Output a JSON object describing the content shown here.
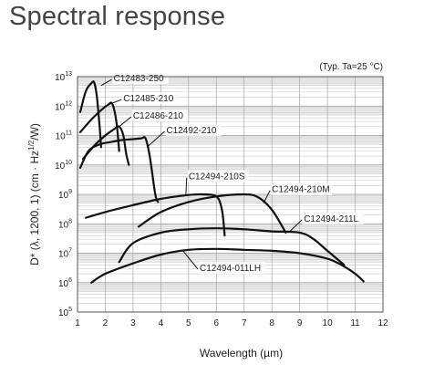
{
  "page": {
    "title": "Spectral response"
  },
  "chart_data": {
    "type": "line",
    "title": "Spectral response",
    "condition_note": "(Typ. Ta=25 °C)",
    "xlabel": "Wavelength (µm)",
    "ylabel": "D* (λ, 1200, 1) (cm · Hz1/2/W)",
    "ylabel_parts": {
      "pre": "D* (",
      "lambda": "λ",
      "post": ", 1200, 1) (cm · Hz",
      "sup": "1/2",
      "end": "/W)"
    },
    "xlim": [
      1,
      12
    ],
    "xticks": [
      1,
      2,
      3,
      4,
      5,
      6,
      7,
      8,
      9,
      10,
      11,
      12
    ],
    "yscale": "log",
    "ylim": [
      100000,
      10000000000000
    ],
    "yticks": [
      {
        "base": "10",
        "exp": "5",
        "value": 100000
      },
      {
        "base": "10",
        "exp": "6",
        "value": 1000000
      },
      {
        "base": "10",
        "exp": "7",
        "value": 10000000
      },
      {
        "base": "10",
        "exp": "8",
        "value": 100000000
      },
      {
        "base": "10",
        "exp": "9",
        "value": 1000000000
      },
      {
        "base": "10",
        "exp": "10",
        "value": 10000000000
      },
      {
        "base": "10",
        "exp": "11",
        "value": 100000000000
      },
      {
        "base": "10",
        "exp": "12",
        "value": 1000000000000
      },
      {
        "base": "10",
        "exp": "13",
        "value": 10000000000000
      }
    ],
    "grid": true,
    "legend": "none",
    "series": [
      {
        "name": "C12483-250",
        "points": [
          [
            1.1,
            630000000000.0
          ],
          [
            1.3,
            3200000000000.0
          ],
          [
            1.5,
            6000000000000.0
          ],
          [
            1.6,
            6300000000000.0
          ],
          [
            1.7,
            2000000000000.0
          ],
          [
            1.8,
            180000000000.0
          ],
          [
            1.85,
            40000000000.0
          ]
        ]
      },
      {
        "name": "C12485-210",
        "points": [
          [
            1.1,
            130000000000.0
          ],
          [
            1.5,
            350000000000.0
          ],
          [
            1.9,
            800000000000.0
          ],
          [
            2.1,
            1100000000000.0
          ],
          [
            2.25,
            1200000000000.0
          ],
          [
            2.4,
            300000000000.0
          ],
          [
            2.5,
            30000000000.0
          ]
        ]
      },
      {
        "name": "C12486-210",
        "points": [
          [
            1.2,
            16000000000.0
          ],
          [
            1.6,
            45000000000.0
          ],
          [
            2,
            100000000000.0
          ],
          [
            2.3,
            160000000000.0
          ],
          [
            2.5,
            200000000000.0
          ],
          [
            2.65,
            100000000000.0
          ],
          [
            2.75,
            25000000000.0
          ],
          [
            2.85,
            10000000000.0
          ]
        ]
      },
      {
        "name": "C12492-210",
        "points": [
          [
            1.1,
            8000000000.0
          ],
          [
            1.4,
            30000000000.0
          ],
          [
            1.8,
            50000000000.0
          ],
          [
            2.2,
            60000000000.0
          ],
          [
            2.6,
            70000000000.0
          ],
          [
            3,
            75000000000.0
          ],
          [
            3.3,
            80000000000.0
          ],
          [
            3.45,
            80000000000.0
          ],
          [
            3.6,
            20000000000.0
          ],
          [
            3.8,
            1000000000.0
          ],
          [
            3.9,
            550000000.0
          ]
        ]
      },
      {
        "name": "C12494-210S",
        "points": [
          [
            1.3,
            160000000.0
          ],
          [
            2,
            250000000.0
          ],
          [
            3,
            430000000.0
          ],
          [
            4,
            700000000.0
          ],
          [
            5,
            950000000.0
          ],
          [
            5.5,
            1000000000.0
          ],
          [
            6,
            850000000.0
          ],
          [
            6.2,
            300000000.0
          ],
          [
            6.3,
            40000000.0
          ]
        ]
      },
      {
        "name": "C12494-210M",
        "points": [
          [
            3.2,
            80000000.0
          ],
          [
            4,
            250000000.0
          ],
          [
            5,
            550000000.0
          ],
          [
            6,
            850000000.0
          ],
          [
            7,
            1000000000.0
          ],
          [
            7.5,
            800000000.0
          ],
          [
            8,
            300000000.0
          ],
          [
            8.5,
            50000000.0
          ]
        ]
      },
      {
        "name": "C12494-211L",
        "points": [
          [
            2.5,
            5000000.0
          ],
          [
            3,
            22000000.0
          ],
          [
            4,
            50000000.0
          ],
          [
            5,
            65000000.0
          ],
          [
            6,
            70000000.0
          ],
          [
            7,
            65000000.0
          ],
          [
            8,
            55000000.0
          ],
          [
            9,
            50000000.0
          ],
          [
            9.5,
            30000000.0
          ],
          [
            10,
            12000000.0
          ],
          [
            10.6,
            4000000.0
          ]
        ]
      },
      {
        "name": "C12494-011LH",
        "points": [
          [
            1.5,
            1000000.0
          ],
          [
            2,
            2000000.0
          ],
          [
            3,
            4500000.0
          ],
          [
            4,
            9000000.0
          ],
          [
            5,
            13000000.0
          ],
          [
            6,
            14000000.0
          ],
          [
            7,
            13000000.0
          ],
          [
            8,
            12000000.0
          ],
          [
            9,
            10000000.0
          ],
          [
            10,
            6500000.0
          ],
          [
            10.5,
            4000000.0
          ],
          [
            11,
            2000000.0
          ],
          [
            11.3,
            1100000.0
          ]
        ]
      }
    ],
    "annotations": [
      {
        "text": "C12483-250",
        "series": "C12483-250",
        "label_at": [
          2.3,
          6500000000000.0
        ],
        "arrow_to": [
          1.85,
          5000000000000.0
        ]
      },
      {
        "text": "C12485-210",
        "series": "C12485-210",
        "label_at": [
          2.65,
          1350000000000.0
        ],
        "arrow_to": [
          2.1,
          1100000000000.0
        ]
      },
      {
        "text": "C12486-210",
        "series": "C12486-210",
        "label_at": [
          3.0,
          350000000000.0
        ],
        "arrow_to": [
          2.5,
          200000000000.0
        ]
      },
      {
        "text": "C12492-210",
        "series": "C12492-210",
        "label_at": [
          4.2,
          110000000000.0
        ],
        "arrow_to": [
          3.5,
          40000000000.0
        ]
      },
      {
        "text": "C12494-210S",
        "series": "C12494-210S",
        "label_at": [
          5.0,
          3000000000.0
        ],
        "arrow_to": [
          4.9,
          900000000.0
        ]
      },
      {
        "text": "C12494-210M",
        "series": "C12494-210M",
        "label_at": [
          8.0,
          1100000000.0
        ],
        "arrow_to": [
          7.7,
          500000000.0
        ]
      },
      {
        "text": "C12494-211L",
        "series": "C12494-211L",
        "label_at": [
          9.15,
          110000000.0
        ],
        "arrow_to": [
          8.6,
          50000000.0
        ]
      },
      {
        "text": "C12494-011LH",
        "series": "C12494-011LH",
        "label_at": [
          5.4,
          2300000.0
        ],
        "arrow_to": [
          4.8,
          12000000.0
        ]
      }
    ]
  }
}
